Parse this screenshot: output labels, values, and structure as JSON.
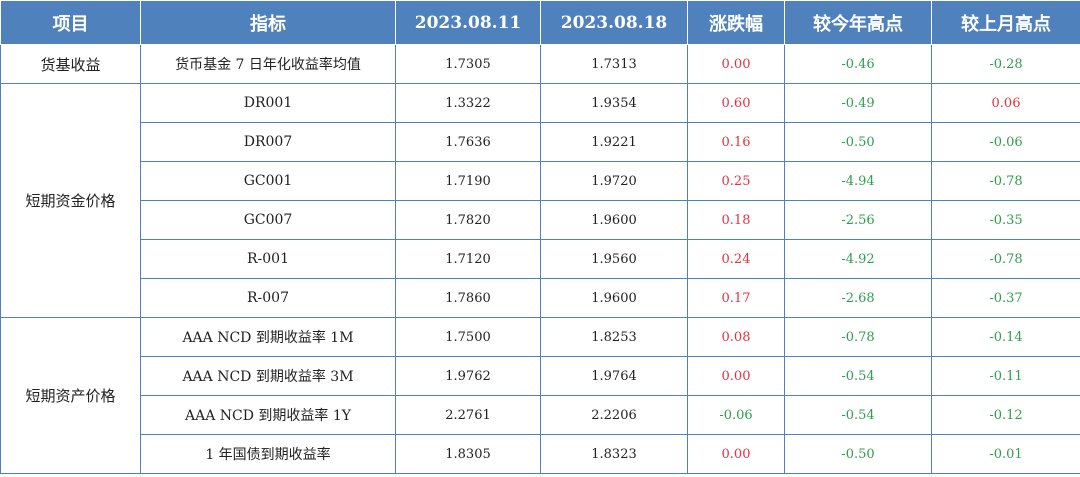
{
  "header": {
    "item": "项目",
    "indicator": "指标",
    "date1": "2023.08.11",
    "date2": "2023.08.18",
    "change": "涨跌幅",
    "vs_year_high": "较今年高点",
    "vs_month_high": "较上月高点"
  },
  "groups": [
    {
      "category": "货基收益",
      "rows": [
        {
          "indicator": "货币基金 7 日年化收益率均值",
          "v1": "1.7305",
          "v2": "1.7313",
          "change": "0.00",
          "year_high": "-0.46",
          "month_high": "-0.28"
        }
      ]
    },
    {
      "category": "短期资金价格",
      "rows": [
        {
          "indicator": "DR001",
          "v1": "1.3322",
          "v2": "1.9354",
          "change": "0.60",
          "year_high": "-0.49",
          "month_high": "0.06"
        },
        {
          "indicator": "DR007",
          "v1": "1.7636",
          "v2": "1.9221",
          "change": "0.16",
          "year_high": "-0.50",
          "month_high": "-0.06"
        },
        {
          "indicator": "GC001",
          "v1": "1.7190",
          "v2": "1.9720",
          "change": "0.25",
          "year_high": "-4.94",
          "month_high": "-0.78"
        },
        {
          "indicator": "GC007",
          "v1": "1.7820",
          "v2": "1.9600",
          "change": "0.18",
          "year_high": "-2.56",
          "month_high": "-0.35"
        },
        {
          "indicator": "R-001",
          "v1": "1.7120",
          "v2": "1.9560",
          "change": "0.24",
          "year_high": "-4.92",
          "month_high": "-0.78"
        },
        {
          "indicator": "R-007",
          "v1": "1.7860",
          "v2": "1.9600",
          "change": "0.17",
          "year_high": "-2.68",
          "month_high": "-0.37"
        }
      ]
    },
    {
      "category": "短期资产价格",
      "rows": [
        {
          "indicator": "AAA NCD 到期收益率 1M",
          "v1": "1.7500",
          "v2": "1.8253",
          "change": "0.08",
          "year_high": "-0.78",
          "month_high": "-0.14"
        },
        {
          "indicator": "AAA NCD 到期收益率 3M",
          "v1": "1.9762",
          "v2": "1.9764",
          "change": "0.00",
          "year_high": "-0.54",
          "month_high": "-0.11"
        },
        {
          "indicator": "AAA NCD 到期收益率 1Y",
          "v1": "2.2761",
          "v2": "2.2206",
          "change": "-0.06",
          "year_high": "-0.54",
          "month_high": "-0.12"
        },
        {
          "indicator": "1 年国债到期收益率",
          "v1": "1.8305",
          "v2": "1.8323",
          "change": "0.00",
          "year_high": "-0.50",
          "month_high": "-0.01"
        }
      ]
    }
  ],
  "colors": {
    "header_bg": "#4f81bd",
    "positive": "#e5323e",
    "negative": "#2e9e4f"
  }
}
